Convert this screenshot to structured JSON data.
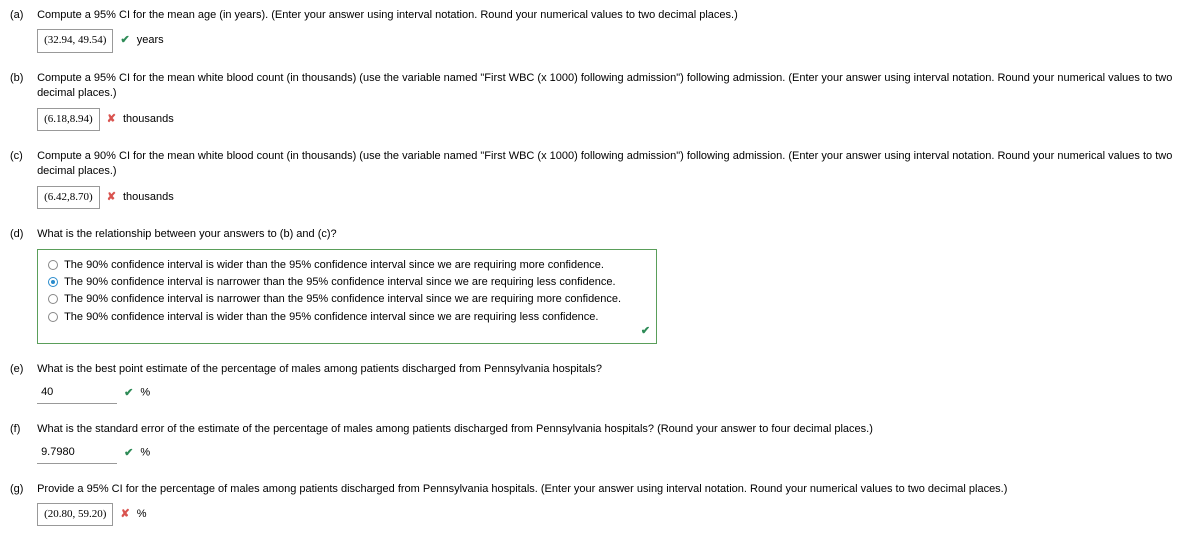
{
  "a": {
    "label": "(a)",
    "prompt": "Compute a 95% CI for the mean age (in years). (Enter your answer using interval notation. Round your numerical values to two decimal places.)",
    "answer": "(32.94, 49.54)",
    "mark": "✔",
    "unit": "years"
  },
  "b": {
    "label": "(b)",
    "prompt": "Compute a 95% CI for the mean white blood count (in thousands) (use the variable named \"First WBC (x 1000) following admission\") following admission. (Enter your answer using interval notation. Round your numerical values to two decimal places.)",
    "answer": "(6.18,8.94)",
    "mark": "✘",
    "unit": "thousands"
  },
  "c": {
    "label": "(c)",
    "prompt": "Compute a 90% CI for the mean white blood count (in thousands) (use the variable named \"First WBC (x 1000) following admission\") following admission. (Enter your answer using interval notation. Round your numerical values to two decimal places.)",
    "answer": "(6.42,8.70)",
    "mark": "✘",
    "unit": "thousands"
  },
  "d": {
    "label": "(d)",
    "prompt": "What is the relationship between your answers to (b) and (c)?",
    "options": [
      "The 90% confidence interval is wider than the 95% confidence interval since we are requiring more confidence.",
      "The 90% confidence interval is narrower than the 95% confidence interval since we are requiring less confidence.",
      "The 90% confidence interval is narrower than the 95% confidence interval since we are requiring more confidence.",
      "The 90% confidence interval is wider than the 95% confidence interval since we are requiring less confidence."
    ],
    "selected_index": 1,
    "mark": "✔"
  },
  "e": {
    "label": "(e)",
    "prompt": "What is the best point estimate of the percentage of males among patients discharged from Pennsylvania hospitals?",
    "answer": "40",
    "mark": "✔",
    "unit": "%"
  },
  "f": {
    "label": "(f)",
    "prompt": "What is the standard error of the estimate of the percentage of males among patients discharged from Pennsylvania hospitals? (Round your answer to four decimal places.)",
    "answer": "9.7980",
    "mark": "✔",
    "unit": "%"
  },
  "g": {
    "label": "(g)",
    "prompt": "Provide a 95% CI for the percentage of males among patients discharged from Pennsylvania hospitals. (Enter your answer using interval notation. Round your numerical values to two decimal places.)",
    "answer": "(20.80, 59.20)",
    "mark": "✘",
    "unit": "%"
  }
}
